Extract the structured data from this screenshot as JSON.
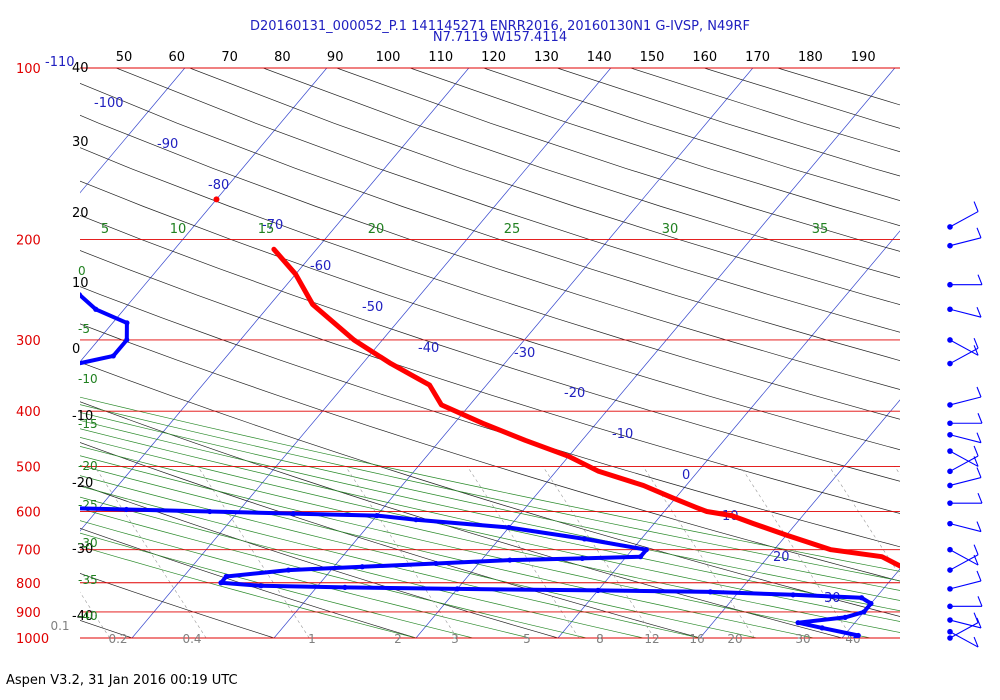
{
  "header": {
    "title_line1": "D20160131_000052_P.1 141145271 ENRR2016, 20160130N1 G-IVSP, N49RF",
    "title_line2": "N7.7119 W157.4114"
  },
  "footer": {
    "text": "Aspen V3.2, 31 Jan 2016  00:19 UTC"
  },
  "chart_data": {
    "type": "skew-t",
    "pressure_axis": {
      "range": [
        100,
        1000
      ],
      "scale": "log",
      "ticks": [
        "100",
        "200",
        "300",
        "400",
        "500",
        "600",
        "700",
        "800",
        "900",
        "1000"
      ],
      "color": "#e00000"
    },
    "top_temperature_labels": [
      "50",
      "60",
      "70",
      "80",
      "90",
      "100",
      "110",
      "120",
      "130",
      "140",
      "150",
      "160",
      "170",
      "180",
      "190"
    ],
    "left_temperature_labels": [
      "40",
      "30",
      "20",
      "10",
      "0",
      "-10",
      "-20",
      "-30",
      "-40"
    ],
    "isotherm_labels": [
      "-110",
      "-100",
      "-90",
      "-80",
      "-70",
      "-60",
      "-50",
      "-40",
      "-30",
      "-20",
      "-10",
      "0",
      "10",
      "20",
      "30"
    ],
    "moist_adiabat_labels": [
      "5",
      "10",
      "15",
      "20",
      "25",
      "30",
      "35"
    ],
    "dry_adiabat_labels": [
      "0",
      "-5",
      "-10",
      "-15",
      "-20",
      "-25",
      "-30",
      "-35",
      "-40"
    ],
    "mixing_ratio_labels": [
      "0.1",
      "0.2",
      "0.4",
      "1",
      "2",
      "3",
      "5",
      "8",
      "12",
      "16",
      "20",
      "30",
      "40"
    ],
    "temperature_profile": {
      "color": "#ff0000",
      "points": [
        [
          208,
          -53
        ],
        [
          230,
          -50
        ],
        [
          260,
          -47
        ],
        [
          300,
          -42
        ],
        [
          330,
          -38
        ],
        [
          360,
          -34
        ],
        [
          390,
          -32
        ],
        [
          420,
          -28
        ],
        [
          450,
          -24
        ],
        [
          480,
          -20
        ],
        [
          510,
          -17
        ],
        [
          540,
          -13
        ],
        [
          570,
          -10
        ],
        [
          590,
          -8
        ],
        [
          600,
          -7
        ],
        [
          610,
          -5
        ],
        [
          630,
          -3
        ],
        [
          660,
          0
        ],
        [
          700,
          4
        ],
        [
          720,
          8
        ],
        [
          750,
          10
        ],
        [
          780,
          12
        ],
        [
          810,
          14
        ],
        [
          840,
          15
        ],
        [
          880,
          17
        ],
        [
          920,
          19
        ],
        [
          960,
          22
        ],
        [
          1003,
          26
        ]
      ],
      "isolated_point": [
        170,
        -60
      ]
    },
    "dewpoint_profile": {
      "color": "#0000ff",
      "points": [
        [
          225,
          -70
        ],
        [
          235,
          -66
        ],
        [
          250,
          -64
        ],
        [
          265,
          -62
        ],
        [
          280,
          -59
        ],
        [
          300,
          -58
        ],
        [
          320,
          -58
        ],
        [
          335,
          -61
        ],
        [
          345,
          -66
        ],
        [
          355,
          -71
        ],
        [
          365,
          -78
        ],
        [
          375,
          -88
        ],
        [
          385,
          -90
        ],
        [
          400,
          -90
        ],
        [
          430,
          -89
        ],
        [
          500,
          -90
        ],
        [
          520,
          -89
        ],
        [
          535,
          -86
        ],
        [
          550,
          -83
        ],
        [
          560,
          -78
        ],
        [
          570,
          -72
        ],
        [
          580,
          -66
        ],
        [
          585,
          -60
        ],
        [
          590,
          -54
        ],
        [
          595,
          -48
        ],
        [
          600,
          -42
        ],
        [
          605,
          -36
        ],
        [
          610,
          -30
        ],
        [
          620,
          -27
        ],
        [
          640,
          -20
        ],
        [
          670,
          -14
        ],
        [
          700,
          -9
        ],
        [
          720,
          -9
        ],
        [
          725,
          -13
        ],
        [
          730,
          -18
        ],
        [
          740,
          -23
        ],
        [
          750,
          -28
        ],
        [
          760,
          -33
        ],
        [
          780,
          -37
        ],
        [
          800,
          -37
        ],
        [
          810,
          -34
        ],
        [
          815,
          -28
        ],
        [
          820,
          -20
        ],
        [
          825,
          -10
        ],
        [
          830,
          -2
        ],
        [
          840,
          4
        ],
        [
          850,
          9
        ],
        [
          870,
          10
        ],
        [
          900,
          10
        ],
        [
          920,
          9
        ],
        [
          940,
          6
        ],
        [
          960,
          8
        ],
        [
          990,
          11
        ],
        [
          1003,
          11
        ]
      ]
    },
    "wind_barbs": {
      "color": "#0000ff",
      "pressures": [
        190,
        205,
        240,
        265,
        300,
        330,
        390,
        420,
        440,
        470,
        510,
        540,
        580,
        630,
        700,
        760,
        820,
        880,
        930,
        975,
        1000
      ]
    }
  }
}
